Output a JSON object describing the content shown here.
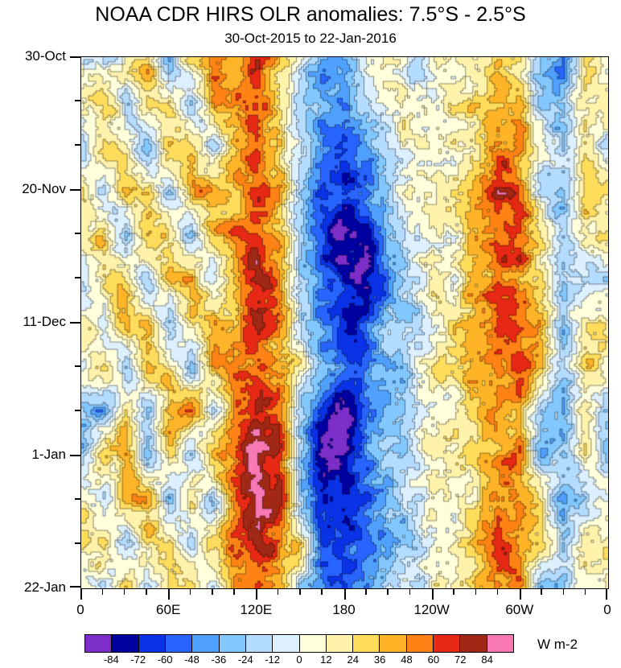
{
  "chart_data": {
    "type": "heatmap",
    "title": "NOAA CDR HIRS OLR anomalies: 7.5°S - 2.5°S",
    "subtitle": "30-Oct-2015 to 22-Jan-2016",
    "units": "W m-2",
    "legend_position": "bottom",
    "grid": false,
    "x_axis": {
      "label": "",
      "range_degrees": [
        0,
        360
      ],
      "tick_values": [
        0,
        60,
        120,
        180,
        240,
        300,
        360
      ],
      "tick_labels": [
        "0",
        "60E",
        "120E",
        "180",
        "120W",
        "60W",
        "0"
      ],
      "minor_step_degrees": 15
    },
    "y_axis": {
      "label": "",
      "range_days": [
        0,
        84
      ],
      "tick_days": [
        0,
        21,
        42,
        63,
        84
      ],
      "tick_labels": [
        "30-Oct",
        "20-Nov",
        "11-Dec",
        "1-Jan",
        "22-Jan"
      ],
      "minor_step_days": 7
    },
    "levels": [
      -84,
      -72,
      -60,
      -48,
      -36,
      -24,
      -12,
      0,
      12,
      24,
      36,
      48,
      60,
      72,
      84
    ],
    "colors": [
      "#7D2EC8",
      "#0000A0",
      "#0A32E6",
      "#2864FF",
      "#50A0FF",
      "#82C8FF",
      "#B4DCFF",
      "#DCF0FF",
      "#FFFFDC",
      "#FFF2AA",
      "#FFDC5A",
      "#FFB428",
      "#FF8214",
      "#E62814",
      "#A02814",
      "#F878B4"
    ],
    "colorbar_tick_labels": [
      "-84",
      "-72",
      "-60",
      "-48",
      "-36",
      "-24",
      "-12",
      "0",
      "12",
      "24",
      "36",
      "48",
      "60",
      "72",
      "84"
    ],
    "lon_grid_degrees": [
      0,
      15,
      30,
      45,
      60,
      75,
      90,
      105,
      120,
      135,
      150,
      165,
      180,
      195,
      210,
      225,
      240,
      255,
      270,
      285,
      300,
      315,
      330,
      345,
      360
    ],
    "time_grid_days": [
      0,
      7,
      14,
      21,
      28,
      35,
      42,
      49,
      56,
      63,
      70,
      77,
      84
    ],
    "values": [
      [
        10,
        -20,
        25,
        40,
        -35,
        30,
        55,
        35,
        75,
        30,
        -10,
        -45,
        -30,
        10,
        25,
        -15,
        5,
        10,
        15,
        40,
        20,
        -30,
        -50,
        15,
        10
      ],
      [
        15,
        30,
        -25,
        35,
        20,
        -30,
        40,
        60,
        70,
        20,
        -20,
        -40,
        -55,
        -20,
        15,
        5,
        10,
        15,
        30,
        50,
        35,
        -20,
        -35,
        20,
        15
      ],
      [
        -10,
        35,
        30,
        -30,
        25,
        35,
        -25,
        45,
        60,
        35,
        -25,
        -50,
        -60,
        -35,
        -10,
        10,
        15,
        10,
        25,
        55,
        45,
        10,
        -25,
        15,
        -10
      ],
      [
        20,
        -30,
        40,
        30,
        -20,
        40,
        50,
        30,
        65,
        40,
        -30,
        -55,
        -70,
        -45,
        -20,
        5,
        10,
        20,
        40,
        70,
        60,
        -15,
        -30,
        25,
        20
      ],
      [
        15,
        25,
        -35,
        45,
        30,
        -25,
        35,
        55,
        70,
        45,
        -20,
        -60,
        -88,
        -75,
        -40,
        -10,
        15,
        10,
        30,
        55,
        70,
        20,
        -20,
        15,
        15
      ],
      [
        -15,
        30,
        35,
        -25,
        35,
        45,
        -20,
        50,
        75,
        55,
        -25,
        -55,
        -80,
        -90,
        -45,
        -15,
        10,
        15,
        35,
        60,
        50,
        25,
        -15,
        -20,
        -15
      ],
      [
        20,
        -20,
        45,
        35,
        -30,
        30,
        55,
        40,
        70,
        60,
        -15,
        -50,
        -70,
        -60,
        -30,
        -20,
        5,
        20,
        45,
        65,
        55,
        30,
        -25,
        20,
        20
      ],
      [
        10,
        25,
        -30,
        40,
        25,
        -35,
        45,
        60,
        55,
        35,
        20,
        -35,
        -55,
        -50,
        -25,
        -10,
        10,
        25,
        40,
        55,
        65,
        35,
        -15,
        25,
        10
      ],
      [
        -25,
        -35,
        30,
        -20,
        40,
        50,
        -15,
        55,
        80,
        60,
        -30,
        -70,
        -88,
        -55,
        -35,
        -20,
        5,
        15,
        30,
        50,
        40,
        -25,
        -40,
        15,
        -25
      ],
      [
        -20,
        30,
        40,
        -30,
        35,
        -20,
        50,
        65,
        85,
        70,
        -20,
        -80,
        -80,
        -45,
        -25,
        -15,
        10,
        20,
        35,
        45,
        55,
        -30,
        -20,
        20,
        -20
      ],
      [
        15,
        -25,
        35,
        40,
        -25,
        35,
        -30,
        60,
        95,
        75,
        -25,
        -65,
        -70,
        -60,
        -30,
        -10,
        15,
        10,
        25,
        55,
        45,
        25,
        -35,
        -25,
        15
      ],
      [
        20,
        30,
        -20,
        35,
        30,
        -15,
        45,
        55,
        80,
        55,
        30,
        -55,
        -65,
        -50,
        -35,
        -20,
        10,
        20,
        40,
        60,
        50,
        30,
        -30,
        20,
        20
      ],
      [
        10,
        -15,
        30,
        -25,
        25,
        40,
        -20,
        50,
        60,
        45,
        -15,
        -45,
        -55,
        -40,
        -20,
        -10,
        5,
        15,
        30,
        45,
        55,
        -20,
        -25,
        15,
        10
      ]
    ]
  }
}
